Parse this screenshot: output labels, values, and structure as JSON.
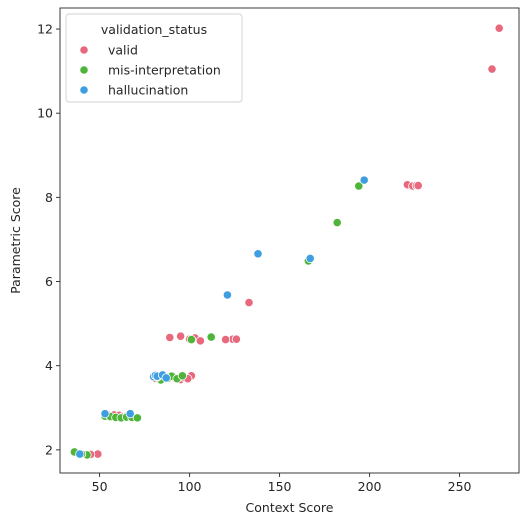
{
  "chart_data": {
    "type": "scatter",
    "xlabel": "Context Score",
    "ylabel": "Parametric Score",
    "xlim": [
      28,
      283
    ],
    "ylim": [
      1.45,
      12.5
    ],
    "xticks": [
      50,
      100,
      150,
      200,
      250
    ],
    "yticks": [
      2,
      4,
      6,
      8,
      10,
      12
    ],
    "grid": false,
    "legend": {
      "title": "validation_status",
      "placement": "top-left"
    },
    "series": [
      {
        "name": "valid",
        "color": "#e8697d",
        "points": [
          [
            272,
            12.02
          ],
          [
            268,
            11.05
          ],
          [
            221,
            8.3
          ],
          [
            224,
            8.27
          ],
          [
            226,
            8.28
          ],
          [
            227,
            8.28
          ],
          [
            133,
            5.5
          ],
          [
            124,
            4.63
          ],
          [
            126,
            4.63
          ],
          [
            120,
            4.62
          ],
          [
            89,
            4.67
          ],
          [
            95,
            4.7
          ],
          [
            103,
            4.66
          ],
          [
            106,
            4.59
          ],
          [
            100,
            4.63
          ],
          [
            81,
            3.7
          ],
          [
            84,
            3.76
          ],
          [
            89,
            3.72
          ],
          [
            92,
            3.7
          ],
          [
            95,
            3.67
          ],
          [
            97,
            3.72
          ],
          [
            101,
            3.76
          ],
          [
            99,
            3.69
          ],
          [
            55,
            2.82
          ],
          [
            58,
            2.83
          ],
          [
            61,
            2.82
          ],
          [
            63,
            2.79
          ],
          [
            65,
            2.8
          ],
          [
            49,
            1.9
          ],
          [
            45,
            1.89
          ]
        ]
      },
      {
        "name": "mis-interpretation",
        "color": "#4fb43a",
        "points": [
          [
            194,
            8.27
          ],
          [
            182,
            7.4
          ],
          [
            166,
            6.49
          ],
          [
            112,
            4.68
          ],
          [
            101,
            4.62
          ],
          [
            86,
            3.72
          ],
          [
            88,
            3.7
          ],
          [
            90,
            3.75
          ],
          [
            93,
            3.69
          ],
          [
            96,
            3.76
          ],
          [
            84,
            3.66
          ],
          [
            82,
            3.73
          ],
          [
            53,
            2.8
          ],
          [
            56,
            2.79
          ],
          [
            59,
            2.77
          ],
          [
            62,
            2.76
          ],
          [
            65,
            2.78
          ],
          [
            68,
            2.77
          ],
          [
            71,
            2.76
          ],
          [
            36,
            1.95
          ],
          [
            43,
            1.88
          ],
          [
            40,
            1.9
          ]
        ]
      },
      {
        "name": "hallucination",
        "color": "#3f9ee0",
        "points": [
          [
            197,
            8.41
          ],
          [
            167,
            6.55
          ],
          [
            138,
            6.66
          ],
          [
            121,
            5.68
          ],
          [
            80,
            3.74
          ],
          [
            81,
            3.77
          ],
          [
            82,
            3.75
          ],
          [
            85,
            3.78
          ],
          [
            87,
            3.71
          ],
          [
            53,
            2.86
          ],
          [
            67,
            2.86
          ],
          [
            39,
            1.9
          ]
        ]
      }
    ]
  }
}
